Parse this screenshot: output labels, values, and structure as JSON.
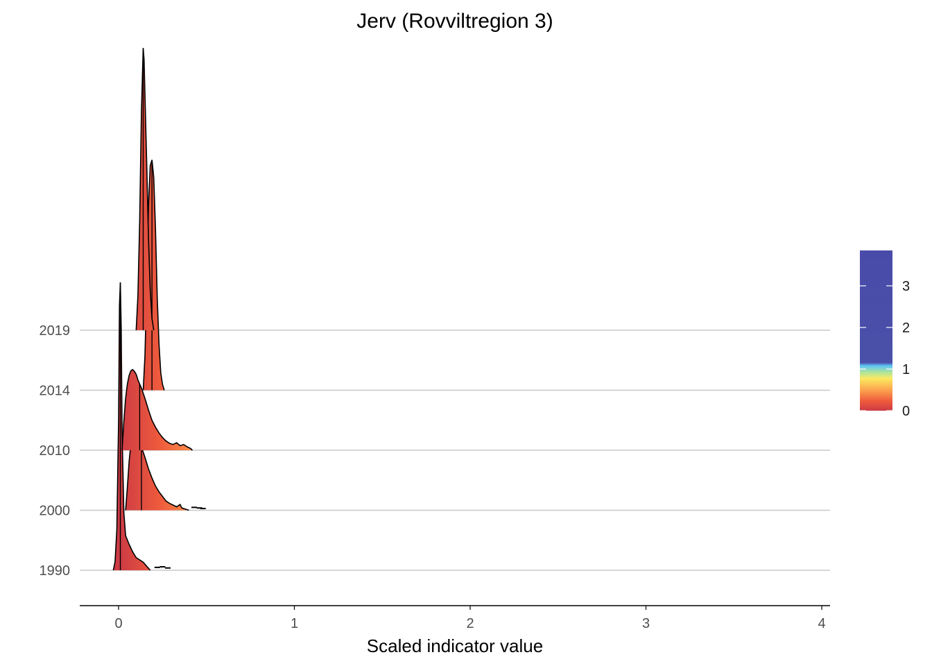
{
  "chart_data": {
    "type": "ridgeline",
    "title": "Jerv (Rovviltregion 3)",
    "xlabel": "Scaled indicator value",
    "ylabel": "",
    "x_ticks": [
      0,
      1,
      2,
      3,
      4
    ],
    "xlim": [
      -0.21,
      4.05
    ],
    "categories": [
      "1990",
      "2000",
      "2010",
      "2014",
      "2019"
    ],
    "grid": "horizontal",
    "legend": {
      "position": "right",
      "type": "colorbar",
      "ticks": [
        0,
        1,
        2,
        3
      ],
      "range": [
        0,
        3.85
      ],
      "colors": [
        "#cc3b45",
        "#ee5a3c",
        "#fb9a4c",
        "#fde860",
        "#aee59a",
        "#5ec6f7",
        "#4a50a8",
        "#4a4ba9"
      ]
    },
    "series": [
      {
        "year": "1990",
        "median": 0.01,
        "peak_height": 5.0,
        "density": [
          [
            -0.03,
            0.0
          ],
          [
            -0.02,
            0.15
          ],
          [
            -0.01,
            0.7
          ],
          [
            0.0,
            2.6
          ],
          [
            0.005,
            4.6
          ],
          [
            0.01,
            5.0
          ],
          [
            0.015,
            4.2
          ],
          [
            0.02,
            2.4
          ],
          [
            0.03,
            1.0
          ],
          [
            0.04,
            0.6
          ],
          [
            0.06,
            0.45
          ],
          [
            0.08,
            0.32
          ],
          [
            0.1,
            0.22
          ],
          [
            0.12,
            0.18
          ],
          [
            0.14,
            0.14
          ],
          [
            0.16,
            0.07
          ],
          [
            0.18,
            0.0
          ]
        ],
        "tail": [
          [
            0.22,
            0.05
          ],
          [
            0.25,
            0.06
          ],
          [
            0.28,
            0.04
          ]
        ]
      },
      {
        "year": "2000",
        "median": 0.13,
        "peak_height": 1.38,
        "density": [
          [
            0.04,
            0.0
          ],
          [
            0.05,
            0.4
          ],
          [
            0.06,
            0.85
          ],
          [
            0.07,
            1.15
          ],
          [
            0.08,
            1.3
          ],
          [
            0.09,
            1.36
          ],
          [
            0.1,
            1.38
          ],
          [
            0.11,
            1.35
          ],
          [
            0.12,
            1.22
          ],
          [
            0.13,
            1.1
          ],
          [
            0.15,
            0.92
          ],
          [
            0.17,
            0.72
          ],
          [
            0.19,
            0.56
          ],
          [
            0.21,
            0.42
          ],
          [
            0.23,
            0.32
          ],
          [
            0.25,
            0.24
          ],
          [
            0.27,
            0.16
          ],
          [
            0.29,
            0.12
          ],
          [
            0.31,
            0.09
          ],
          [
            0.33,
            0.06
          ],
          [
            0.35,
            0.1
          ],
          [
            0.36,
            0.04
          ],
          [
            0.38,
            0.02
          ],
          [
            0.4,
            0.0
          ]
        ],
        "tail": [
          [
            0.43,
            0.05
          ],
          [
            0.46,
            0.04
          ],
          [
            0.48,
            0.03
          ]
        ]
      },
      {
        "year": "2010",
        "median": 0.12,
        "peak_height": 1.4,
        "density": [
          [
            0.02,
            0.0
          ],
          [
            0.03,
            0.5
          ],
          [
            0.04,
            0.9
          ],
          [
            0.05,
            1.15
          ],
          [
            0.06,
            1.3
          ],
          [
            0.07,
            1.38
          ],
          [
            0.08,
            1.4
          ],
          [
            0.09,
            1.37
          ],
          [
            0.1,
            1.32
          ],
          [
            0.11,
            1.22
          ],
          [
            0.12,
            1.15
          ],
          [
            0.13,
            1.08
          ],
          [
            0.15,
            0.9
          ],
          [
            0.17,
            0.7
          ],
          [
            0.19,
            0.52
          ],
          [
            0.21,
            0.4
          ],
          [
            0.23,
            0.3
          ],
          [
            0.25,
            0.22
          ],
          [
            0.27,
            0.16
          ],
          [
            0.29,
            0.12
          ],
          [
            0.31,
            0.1
          ],
          [
            0.33,
            0.13
          ],
          [
            0.35,
            0.08
          ],
          [
            0.37,
            0.1
          ],
          [
            0.39,
            0.06
          ],
          [
            0.41,
            0.03
          ],
          [
            0.42,
            0.0
          ]
        ],
        "tail": []
      },
      {
        "year": "2014",
        "median": 0.19,
        "peak_height": 4.0,
        "density": [
          [
            0.14,
            0.0
          ],
          [
            0.15,
            0.6
          ],
          [
            0.16,
            1.8
          ],
          [
            0.17,
            3.2
          ],
          [
            0.18,
            3.9
          ],
          [
            0.19,
            4.0
          ],
          [
            0.2,
            3.7
          ],
          [
            0.21,
            2.8
          ],
          [
            0.22,
            1.6
          ],
          [
            0.23,
            0.8
          ],
          [
            0.24,
            0.3
          ],
          [
            0.25,
            0.1
          ],
          [
            0.26,
            0.0
          ]
        ],
        "tail": []
      },
      {
        "year": "2019",
        "median": 0.14,
        "peak_height": 4.9,
        "density": [
          [
            0.1,
            0.0
          ],
          [
            0.11,
            0.6
          ],
          [
            0.12,
            1.9
          ],
          [
            0.13,
            3.8
          ],
          [
            0.14,
            4.9
          ],
          [
            0.145,
            4.7
          ],
          [
            0.15,
            4.1
          ],
          [
            0.16,
            2.9
          ],
          [
            0.17,
            1.6
          ],
          [
            0.18,
            0.7
          ],
          [
            0.19,
            0.2
          ],
          [
            0.2,
            0.0
          ]
        ],
        "tail": []
      }
    ]
  }
}
